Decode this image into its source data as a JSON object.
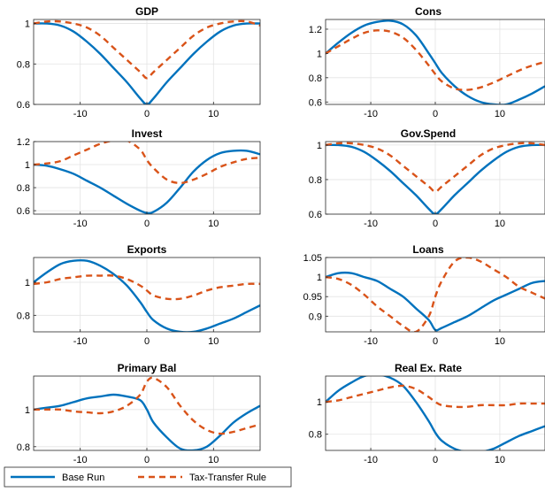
{
  "colors": {
    "base": "#0072BD",
    "tax": "#D95319",
    "grid": "#e3e3e3",
    "axis": "#262626"
  },
  "legend": {
    "base_label": "Base Run",
    "tax_label": "Tax-Transfer Rule",
    "placement": "bottom-left"
  },
  "chart_data": [
    {
      "type": "line",
      "title": "GDP",
      "xlim": [
        -17,
        17
      ],
      "ylim": [
        0.6,
        1.02
      ],
      "xticks": [
        -10,
        0,
        10
      ],
      "yticks": [
        0.6,
        0.8,
        1
      ],
      "grid": true,
      "x": [
        -17,
        -15,
        -13,
        -11,
        -9,
        -7,
        -5,
        -3,
        -1,
        0,
        1,
        3,
        5,
        7,
        9,
        11,
        13,
        15,
        17
      ],
      "series": [
        {
          "name": "Base Run",
          "values": [
            1.0,
            1.0,
            0.99,
            0.96,
            0.91,
            0.85,
            0.78,
            0.71,
            0.63,
            0.6,
            0.63,
            0.71,
            0.78,
            0.85,
            0.91,
            0.96,
            0.99,
            1.0,
            1.0
          ]
        },
        {
          "name": "Tax-Transfer Rule",
          "values": [
            1.0,
            1.01,
            1.01,
            1.0,
            0.98,
            0.94,
            0.88,
            0.82,
            0.76,
            0.73,
            0.76,
            0.82,
            0.88,
            0.94,
            0.98,
            1.0,
            1.01,
            1.01,
            0.99
          ]
        }
      ]
    },
    {
      "type": "line",
      "title": "Cons",
      "xlim": [
        -17,
        17
      ],
      "ylim": [
        0.58,
        1.28
      ],
      "xticks": [
        -10,
        0,
        10
      ],
      "yticks": [
        0.6,
        0.8,
        1,
        1.2
      ],
      "grid": true,
      "x": [
        -17,
        -15,
        -13,
        -11,
        -9,
        -7,
        -5,
        -3,
        -1,
        0,
        1,
        3,
        5,
        7,
        9,
        11,
        13,
        15,
        17
      ],
      "series": [
        {
          "name": "Base Run",
          "values": [
            1.0,
            1.09,
            1.17,
            1.23,
            1.26,
            1.27,
            1.24,
            1.15,
            1.0,
            0.92,
            0.84,
            0.73,
            0.65,
            0.6,
            0.58,
            0.58,
            0.62,
            0.67,
            0.73
          ]
        },
        {
          "name": "Tax-Transfer Rule",
          "values": [
            1.0,
            1.06,
            1.12,
            1.17,
            1.19,
            1.18,
            1.13,
            1.03,
            0.9,
            0.83,
            0.77,
            0.71,
            0.7,
            0.72,
            0.76,
            0.81,
            0.86,
            0.9,
            0.93
          ]
        }
      ]
    },
    {
      "type": "line",
      "title": "Invest",
      "xlim": [
        -17,
        17
      ],
      "ylim": [
        0.57,
        1.2
      ],
      "xticks": [
        -10,
        0,
        10
      ],
      "yticks": [
        0.6,
        0.8,
        1,
        1.2
      ],
      "grid": true,
      "x": [
        -17,
        -15,
        -13,
        -11,
        -9,
        -7,
        -5,
        -3,
        -1,
        0,
        1,
        3,
        5,
        7,
        9,
        11,
        13,
        15,
        17
      ],
      "series": [
        {
          "name": "Base Run",
          "values": [
            1.0,
            0.99,
            0.96,
            0.92,
            0.86,
            0.8,
            0.73,
            0.66,
            0.6,
            0.58,
            0.59,
            0.67,
            0.8,
            0.94,
            1.04,
            1.1,
            1.12,
            1.12,
            1.09
          ]
        },
        {
          "name": "Tax-Transfer Rule",
          "values": [
            1.0,
            1.01,
            1.03,
            1.08,
            1.13,
            1.18,
            1.21,
            1.21,
            1.13,
            1.04,
            0.97,
            0.87,
            0.84,
            0.87,
            0.92,
            0.98,
            1.02,
            1.05,
            1.06
          ]
        }
      ]
    },
    {
      "type": "line",
      "title": "Gov.Spend",
      "xlim": [
        -17,
        17
      ],
      "ylim": [
        0.6,
        1.02
      ],
      "xticks": [
        -10,
        0,
        10
      ],
      "yticks": [
        0.6,
        0.8,
        1
      ],
      "grid": true,
      "x": [
        -17,
        -15,
        -13,
        -11,
        -9,
        -7,
        -5,
        -3,
        -1,
        0,
        1,
        3,
        5,
        7,
        9,
        11,
        13,
        15,
        17
      ],
      "series": [
        {
          "name": "Base Run",
          "values": [
            1.0,
            1.0,
            0.99,
            0.96,
            0.91,
            0.85,
            0.78,
            0.71,
            0.63,
            0.6,
            0.63,
            0.71,
            0.78,
            0.85,
            0.91,
            0.96,
            0.99,
            1.0,
            1.0
          ]
        },
        {
          "name": "Tax-Transfer Rule",
          "values": [
            1.0,
            1.01,
            1.01,
            1.0,
            0.98,
            0.94,
            0.88,
            0.82,
            0.76,
            0.73,
            0.76,
            0.82,
            0.88,
            0.94,
            0.98,
            1.0,
            1.01,
            1.01,
            1.0
          ]
        }
      ]
    },
    {
      "type": "line",
      "title": "Exports",
      "xlim": [
        -17,
        17
      ],
      "ylim": [
        0.7,
        1.15
      ],
      "xticks": [
        -10,
        0,
        10
      ],
      "yticks": [
        0.8,
        1
      ],
      "grid": true,
      "x": [
        -17,
        -15,
        -13,
        -11,
        -9,
        -7,
        -5,
        -3,
        -1,
        0,
        1,
        3,
        5,
        7,
        9,
        11,
        13,
        15,
        17
      ],
      "series": [
        {
          "name": "Base Run",
          "values": [
            1.0,
            1.06,
            1.11,
            1.13,
            1.13,
            1.1,
            1.05,
            0.98,
            0.88,
            0.82,
            0.77,
            0.72,
            0.7,
            0.7,
            0.72,
            0.75,
            0.78,
            0.82,
            0.86
          ]
        },
        {
          "name": "Tax-Transfer Rule",
          "values": [
            0.99,
            1.0,
            1.02,
            1.03,
            1.04,
            1.04,
            1.04,
            1.02,
            0.98,
            0.95,
            0.92,
            0.9,
            0.9,
            0.92,
            0.95,
            0.97,
            0.98,
            0.99,
            0.99
          ]
        }
      ]
    },
    {
      "type": "line",
      "title": "Loans",
      "xlim": [
        -17,
        17
      ],
      "ylim": [
        0.86,
        1.05
      ],
      "xticks": [
        -10,
        0,
        10
      ],
      "yticks": [
        0.9,
        0.95,
        1,
        1.05
      ],
      "grid": true,
      "x": [
        -17,
        -15,
        -13,
        -11,
        -9,
        -7,
        -5,
        -3,
        -1,
        0,
        1,
        3,
        5,
        7,
        9,
        11,
        13,
        15,
        17
      ],
      "series": [
        {
          "name": "Base Run",
          "values": [
            1.0,
            1.01,
            1.01,
            1.0,
            0.99,
            0.97,
            0.95,
            0.92,
            0.89,
            0.865,
            0.87,
            0.885,
            0.9,
            0.92,
            0.94,
            0.955,
            0.97,
            0.985,
            0.99
          ]
        },
        {
          "name": "Tax-Transfer Rule",
          "values": [
            1.0,
            0.995,
            0.98,
            0.955,
            0.925,
            0.9,
            0.875,
            0.86,
            0.9,
            0.95,
            0.99,
            1.04,
            1.05,
            1.04,
            1.02,
            1.0,
            0.975,
            0.96,
            0.945
          ]
        }
      ]
    },
    {
      "type": "line",
      "title": "Primary Bal",
      "xlim": [
        -17,
        17
      ],
      "ylim": [
        0.78,
        1.18
      ],
      "xticks": [
        -10,
        0,
        10
      ],
      "yticks": [
        0.8,
        1
      ],
      "grid": true,
      "x": [
        -17,
        -15,
        -13,
        -11,
        -9,
        -7,
        -5,
        -3,
        -1,
        0,
        1,
        3,
        5,
        7,
        9,
        11,
        13,
        15,
        17
      ],
      "series": [
        {
          "name": "Base Run",
          "values": [
            1.0,
            1.01,
            1.02,
            1.04,
            1.06,
            1.07,
            1.08,
            1.07,
            1.05,
            1.0,
            0.93,
            0.85,
            0.79,
            0.78,
            0.8,
            0.86,
            0.93,
            0.98,
            1.02
          ]
        },
        {
          "name": "Tax-Transfer Rule",
          "values": [
            1.0,
            1.0,
            1.0,
            0.99,
            0.985,
            0.98,
            0.99,
            1.02,
            1.08,
            1.15,
            1.17,
            1.12,
            1.02,
            0.94,
            0.89,
            0.87,
            0.88,
            0.9,
            0.92
          ]
        }
      ]
    },
    {
      "type": "line",
      "title": "Real Ex. Rate",
      "xlim": [
        -17,
        17
      ],
      "ylim": [
        0.7,
        1.16
      ],
      "xticks": [
        -10,
        0,
        10
      ],
      "yticks": [
        0.8,
        1
      ],
      "grid": true,
      "x": [
        -17,
        -15,
        -13,
        -11,
        -9,
        -7,
        -5,
        -3,
        -1,
        0,
        1,
        3,
        5,
        7,
        9,
        11,
        13,
        15,
        17
      ],
      "series": [
        {
          "name": "Base Run",
          "values": [
            1.0,
            1.07,
            1.12,
            1.16,
            1.17,
            1.15,
            1.1,
            1.0,
            0.88,
            0.81,
            0.76,
            0.71,
            0.69,
            0.69,
            0.71,
            0.75,
            0.79,
            0.82,
            0.85
          ]
        },
        {
          "name": "Tax-Transfer Rule",
          "values": [
            1.0,
            1.01,
            1.03,
            1.05,
            1.07,
            1.09,
            1.1,
            1.08,
            1.03,
            1.0,
            0.98,
            0.97,
            0.97,
            0.98,
            0.98,
            0.98,
            0.99,
            0.99,
            0.99
          ]
        }
      ]
    }
  ]
}
